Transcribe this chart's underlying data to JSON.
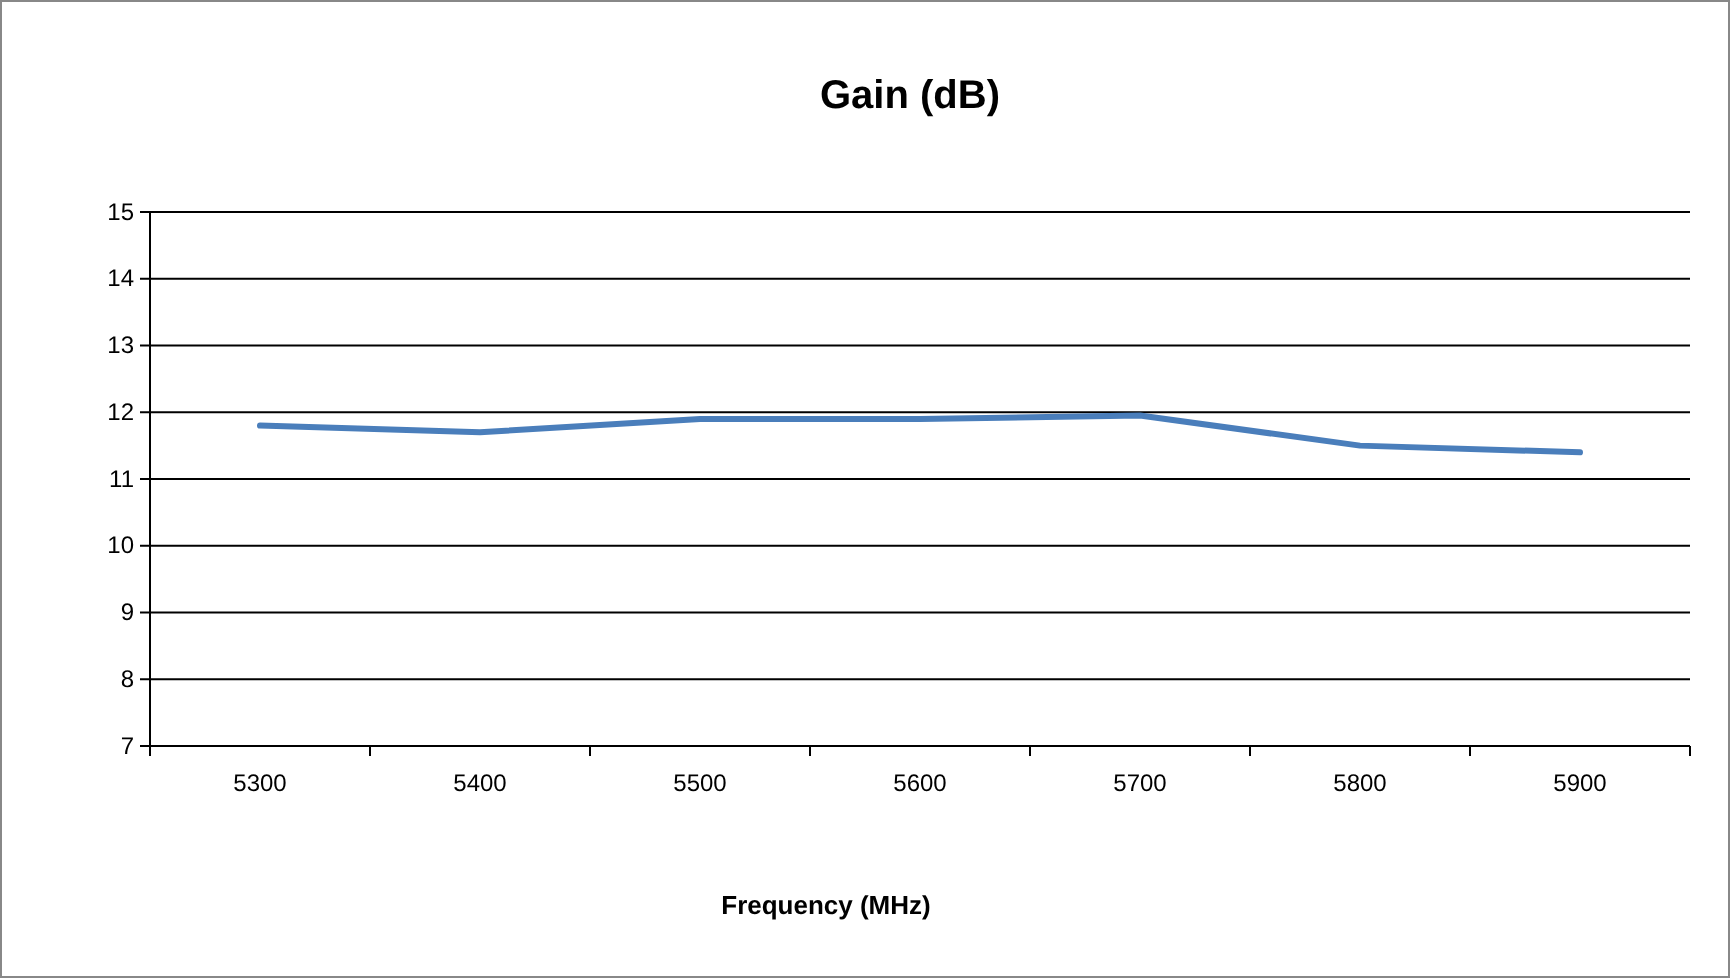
{
  "chart_data": {
    "type": "line",
    "title": "Gain (dB)",
    "xlabel": "Frequency (MHz)",
    "categories": [
      "5300",
      "5400",
      "5500",
      "5600",
      "5700",
      "5800",
      "5900"
    ],
    "series": [
      {
        "color": "#4a7ebb",
        "values": [
          11.8,
          11.7,
          11.9,
          11.9,
          11.95,
          11.5,
          11.4
        ]
      }
    ],
    "ylim": [
      7,
      15
    ],
    "yticks": [
      7,
      8,
      9,
      10,
      11,
      12,
      13,
      14,
      15
    ],
    "grid": "y",
    "marker": "none",
    "line_style": "solid"
  }
}
